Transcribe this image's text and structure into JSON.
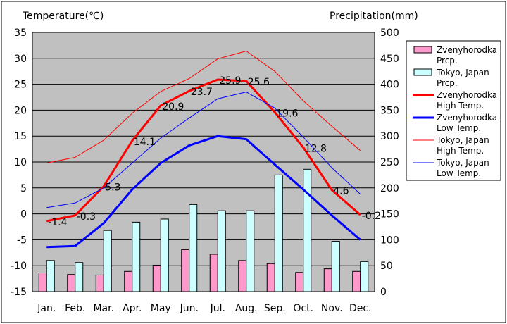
{
  "chart_data": {
    "type": "bar+line",
    "left_axis_title": "Temperature(℃)",
    "right_axis_title": "Precipitation(mm)",
    "left_ylim": [
      -15,
      35
    ],
    "left_ticks": [
      35,
      30,
      25,
      20,
      15,
      10,
      5,
      0,
      -5,
      -10,
      -15
    ],
    "right_ylim": [
      0,
      500
    ],
    "right_ticks": [
      500,
      450,
      400,
      350,
      300,
      250,
      200,
      150,
      100,
      50,
      0
    ],
    "categories": [
      "Jan.",
      "Feb.",
      "Mar.",
      "Apr.",
      "May",
      "Jun.",
      "Jul.",
      "Aug.",
      "Sep.",
      "Oct.",
      "Nov.",
      "Dec."
    ],
    "bar_series": [
      {
        "name": "Zvenyhorodka Prcp.",
        "legend_lines": [
          "Zvenyhorodka",
          "Prcp."
        ],
        "color": "#ff99cc",
        "values": [
          36,
          33,
          32,
          39,
          51,
          81,
          72,
          60,
          54,
          37,
          44,
          39
        ]
      },
      {
        "name": "Tokyo, Japan Prcp.",
        "legend_lines": [
          "Tokyo, Japan",
          "Prcp."
        ],
        "color": "#ccffff",
        "values": [
          60,
          56,
          118,
          134,
          140,
          168,
          156,
          156,
          225,
          236,
          97,
          58
        ]
      }
    ],
    "line_series": [
      {
        "name": "Zvenyhorodka High Temp.",
        "legend_lines": [
          "Zvenyhorodka",
          "High Temp."
        ],
        "color": "#ff0000",
        "width": 3,
        "values": [
          -1.4,
          -0.3,
          5.3,
          14.1,
          20.9,
          23.7,
          25.9,
          25.6,
          19.6,
          12.8,
          4.6,
          -0.2
        ],
        "labels": [
          "-1.4",
          "-0.3",
          "5.3",
          "14.1",
          "20.9",
          "23.7",
          "25.9",
          "25.6",
          "19.6",
          "12.8",
          "4.6",
          "-0.2"
        ]
      },
      {
        "name": "Zvenyhorodka Low Temp.",
        "legend_lines": [
          "Zvenyhorodka",
          "Low Temp."
        ],
        "color": "#0000ff",
        "width": 3,
        "values": [
          -6.4,
          -6.2,
          -1.8,
          4.7,
          9.8,
          13.2,
          15.0,
          14.4,
          9.5,
          4.7,
          -0.3,
          -5.0
        ]
      },
      {
        "name": "Tokyo, Japan High Temp.",
        "legend_lines": [
          "Tokyo, Japan",
          "High Temp."
        ],
        "color": "#ff0000",
        "width": 1,
        "values": [
          9.8,
          10.9,
          14.2,
          19.4,
          23.6,
          26.1,
          29.9,
          31.4,
          27.5,
          21.8,
          16.9,
          12.2
        ]
      },
      {
        "name": "Tokyo, Japan Low Temp.",
        "legend_lines": [
          "Tokyo, Japan",
          "Low Temp."
        ],
        "color": "#0000ff",
        "width": 1,
        "values": [
          1.2,
          2.1,
          5.0,
          9.8,
          14.6,
          18.5,
          22.2,
          23.5,
          20.4,
          14.8,
          8.9,
          3.8
        ]
      }
    ]
  }
}
